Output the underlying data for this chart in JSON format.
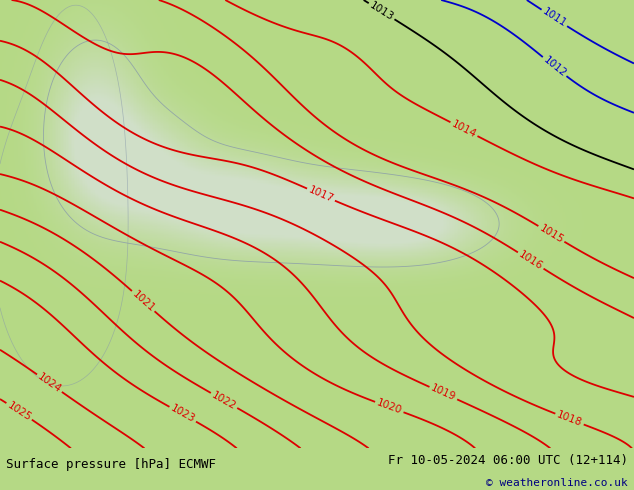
{
  "title_left": "Surface pressure [hPa] ECMWF",
  "title_right": "Fr 10-05-2024 06:00 UTC (12+114)",
  "copyright": "© weatheronline.co.uk",
  "bg_color": "#b5d985",
  "sea_color": "#d0dfc8",
  "coast_color": "#8899aa",
  "contour_color_red": "#dd0000",
  "contour_color_blue": "#0000cc",
  "contour_color_black": "#000000",
  "bottom_bar_color": "#ffffff",
  "bottom_text_color": "#000080",
  "figsize": [
    6.34,
    4.9
  ],
  "dpi": 100,
  "pressure_levels_red": [
    1014,
    1015,
    1016,
    1017,
    1018,
    1019,
    1020,
    1021,
    1022,
    1023,
    1024,
    1025
  ],
  "pressure_levels_blue": [
    1011,
    1012
  ],
  "pressure_levels_black": [
    1013
  ]
}
